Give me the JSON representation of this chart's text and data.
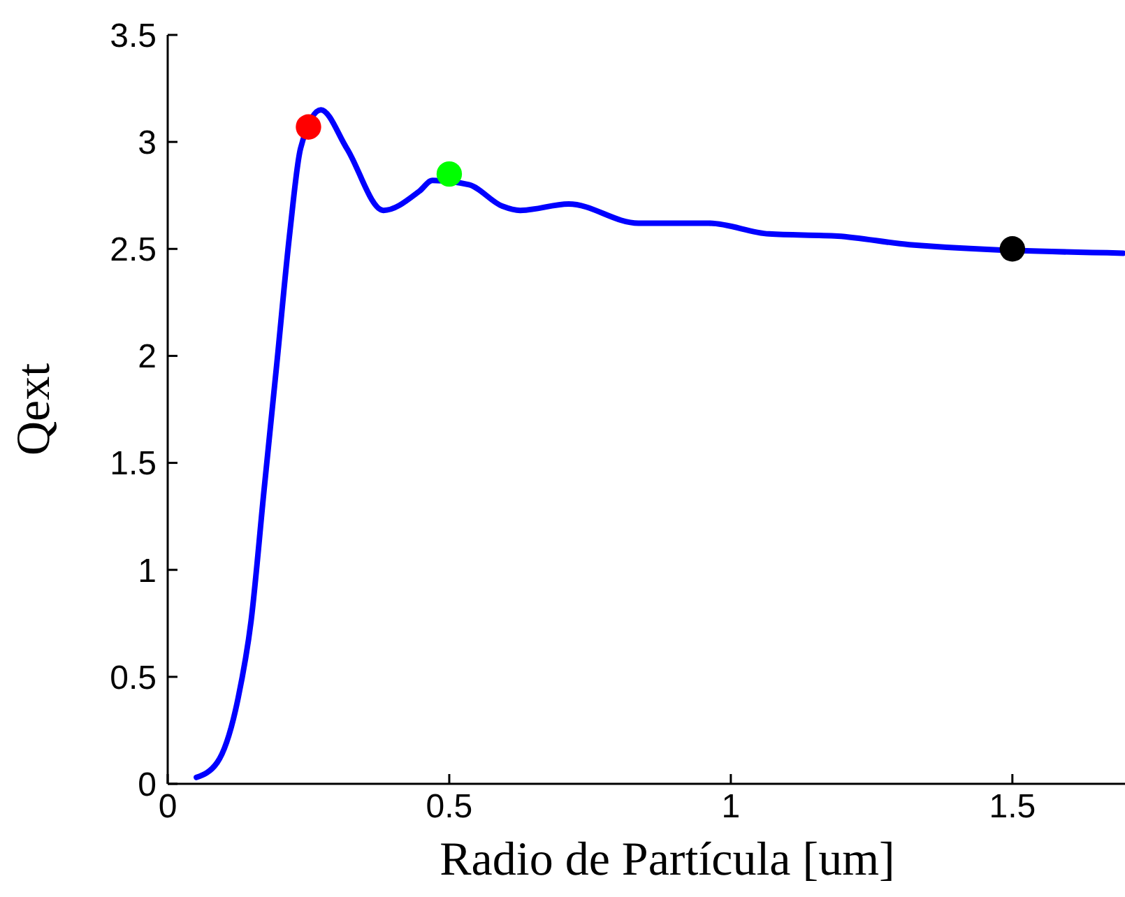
{
  "chart_data": {
    "type": "line",
    "xlabel": "Radio de Partícula [um]",
    "ylabel": "Qext",
    "xlim": [
      0,
      1.7
    ],
    "ylim": [
      0,
      3.5
    ],
    "xticks": [
      0,
      0.5,
      1,
      1.5
    ],
    "yticks": [
      0,
      0.5,
      1,
      1.5,
      2,
      2.5,
      3,
      3.5
    ],
    "grid": false,
    "line_style": "solid",
    "series": [
      {
        "color": "#0000ff",
        "marker": "none",
        "x": [
          0.051,
          0.088,
          0.125,
          0.148,
          0.171,
          0.194,
          0.217,
          0.236,
          0.272,
          0.318,
          0.383,
          0.447,
          0.47,
          0.535,
          0.594,
          0.626,
          0.712,
          0.836,
          0.961,
          1.068,
          1.19,
          1.317,
          1.697
        ],
        "values": [
          0.03,
          0.1,
          0.4,
          0.76,
          1.37,
          1.97,
          2.58,
          2.97,
          3.15,
          2.97,
          2.68,
          2.77,
          2.82,
          2.8,
          2.7,
          2.68,
          2.71,
          2.62,
          2.62,
          2.57,
          2.56,
          2.52,
          2.48
        ]
      },
      {
        "type": "scatter",
        "color": "#ff0000",
        "marker": "circle",
        "x": [
          0.25
        ],
        "values": [
          3.07
        ]
      },
      {
        "type": "scatter",
        "color": "#00ff00",
        "marker": "circle",
        "x": [
          0.5
        ],
        "values": [
          2.85
        ]
      },
      {
        "type": "scatter",
        "color": "#000000",
        "marker": "circle",
        "x": [
          1.5
        ],
        "values": [
          2.5
        ]
      }
    ]
  }
}
